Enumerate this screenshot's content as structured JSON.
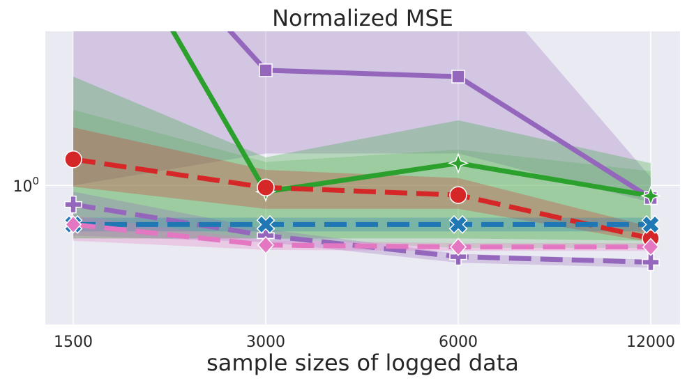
{
  "chart_data": {
    "type": "line",
    "title": "Normalized MSE",
    "xlabel": "sample sizes of logged data",
    "ylabel": "",
    "y_scale": "log",
    "ylim": [
      0.715,
      1.45
    ],
    "grid": true,
    "categories": [
      "1500",
      "3000",
      "6000",
      "12000"
    ],
    "y_ticks": [
      {
        "value": 1.0,
        "base": "10",
        "exp": "0"
      }
    ],
    "series": [
      {
        "color": "#9467bd",
        "dash": "solid",
        "marker": "square",
        "values": [
          2.2,
          1.32,
          1.3,
          0.97
        ],
        "band_low": [
          1.0,
          1.08,
          1.08,
          0.96
        ],
        "band_high": [
          3.0,
          2.2,
          1.75,
          1.02
        ]
      },
      {
        "color": "#2ca02c",
        "dash": "solid",
        "marker": "star",
        "values": [
          2.2,
          0.985,
          1.055,
          0.975
        ],
        "band_low": [
          0.88,
          0.88,
          0.88,
          0.875
        ],
        "band_high": [
          1.3,
          1.07,
          1.17,
          1.055
        ],
        "band2_low": [
          0.88,
          0.88,
          0.86,
          0.86
        ],
        "band2_high": [
          1.2,
          1.058,
          1.09,
          1.035
        ]
      },
      {
        "color": "#d62728",
        "dash": "dashed",
        "marker": "circle",
        "values": [
          1.065,
          0.995,
          0.977,
          0.88
        ],
        "band_low": [
          0.997,
          0.945,
          0.945,
          0.872
        ],
        "band_high": [
          1.15,
          1.038,
          1.018,
          0.905
        ]
      },
      {
        "color": "#9467bd",
        "dash": "dashed",
        "marker": "plus",
        "values": [
          0.955,
          0.886,
          0.842,
          0.831
        ],
        "band_low": [
          0.886,
          0.872,
          0.83,
          0.82
        ],
        "band_high": [
          0.985,
          0.9,
          0.848,
          0.836
        ]
      },
      {
        "color": "#1f77b4",
        "dash": "dashed",
        "marker": "x",
        "values": [
          0.91,
          0.91,
          0.91,
          0.91
        ],
        "band_low": [
          0.895,
          0.895,
          0.895,
          0.895
        ],
        "band_high": [
          0.925,
          0.925,
          0.925,
          0.925
        ]
      },
      {
        "color": "#e377c2",
        "dash": "dashed",
        "marker": "diamond",
        "values": [
          0.91,
          0.866,
          0.862,
          0.862
        ],
        "band_low": [
          0.875,
          0.856,
          0.854,
          0.854
        ],
        "band_high": [
          0.93,
          0.876,
          0.87,
          0.87
        ]
      }
    ]
  }
}
